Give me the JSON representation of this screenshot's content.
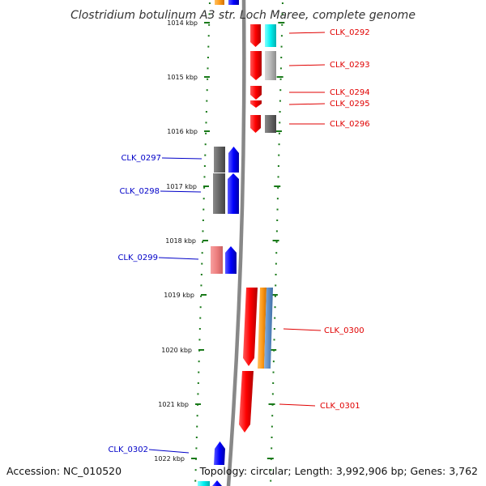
{
  "title": "Clostridium botulinum A3 str. Loch Maree, complete genome",
  "footer": {
    "accession": "Accession: NC_010520",
    "summary": "Topology: circular; Length: 3,992,906 bp; Genes: 3,762"
  },
  "colors": {
    "forward_label": "#e00000",
    "reverse_label": "#0000c8",
    "tick": "#1a7a1a",
    "backbone": "#888888"
  },
  "kbp_labels": [
    "1014 kbp",
    "1015 kbp",
    "1016 kbp",
    "1017 kbp",
    "1018 kbp",
    "1019 kbp",
    "1020 kbp",
    "1021 kbp",
    "1022 kbp"
  ],
  "forward_genes": [
    "CLK_0292",
    "CLK_0293",
    "CLK_0294",
    "CLK_0295",
    "CLK_0296",
    "CLK_0300",
    "CLK_0301"
  ],
  "reverse_genes": [
    "CLK_0297",
    "CLK_0298",
    "CLK_0299",
    "CLK_0302"
  ]
}
